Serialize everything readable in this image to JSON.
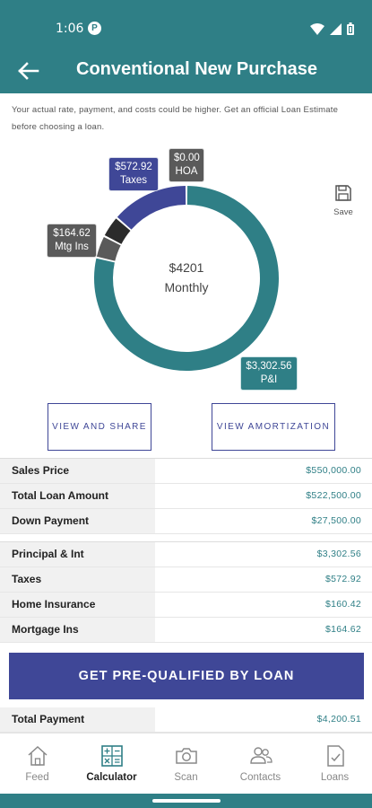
{
  "status_bar": {
    "time": "1:06",
    "badge": "P"
  },
  "app_bar": {
    "title": "Conventional New Purchase"
  },
  "disclaimer": "Your actual rate, payment, and costs could be higher. Get an official Loan Estimate before choosing a loan.",
  "chart_data": {
    "type": "pie",
    "center": {
      "value": "$4201",
      "label": "Monthly"
    },
    "slices": [
      {
        "name": "P&I",
        "label": "$3,302.56",
        "value": 3302.56,
        "color": "#2f7f86"
      },
      {
        "name": "Mtg Ins",
        "label": "$164.62",
        "value": 164.62,
        "color": "#5a5a5a"
      },
      {
        "name": "Home Insurance",
        "label": "",
        "value": 160.42,
        "color": "#2b2b2b"
      },
      {
        "name": "Taxes",
        "label": "$572.92",
        "value": 572.92,
        "color": "#3f4797"
      },
      {
        "name": "HOA",
        "label": "$0.00",
        "value": 0,
        "color": "#5a5a5a"
      }
    ]
  },
  "tags": {
    "taxes": {
      "amount": "$572.92",
      "name": "Taxes"
    },
    "hoa": {
      "amount": "$0.00",
      "name": "HOA"
    },
    "mtg": {
      "amount": "$164.62",
      "name": "Mtg Ins"
    },
    "pi": {
      "amount": "$3,302.56",
      "name": "P&I"
    }
  },
  "save_label": "Save",
  "buttons": {
    "share": "VIEW AND SHARE",
    "amortization": "VIEW AMORTIZATION",
    "prequalify": "GET PRE-QUALIFIED BY LOAN"
  },
  "loan_table": [
    {
      "label": "Sales Price",
      "value": "$550,000.00"
    },
    {
      "label": "Total Loan Amount",
      "value": "$522,500.00"
    },
    {
      "label": "Down Payment",
      "value": "$27,500.00"
    }
  ],
  "payment_table": [
    {
      "label": "Principal & Int",
      "value": "$3,302.56"
    },
    {
      "label": "Taxes",
      "value": "$572.92"
    },
    {
      "label": "Home Insurance",
      "value": "$160.42"
    },
    {
      "label": "Mortgage Ins",
      "value": "$164.62"
    }
  ],
  "total_row": {
    "label": "Total Payment",
    "value": "$4,200.51"
  },
  "nav": [
    {
      "label": "Feed",
      "icon": "home-icon",
      "active": false
    },
    {
      "label": "Calculator",
      "icon": "calculator-icon",
      "active": true
    },
    {
      "label": "Scan",
      "icon": "camera-icon",
      "active": false
    },
    {
      "label": "Contacts",
      "icon": "contacts-icon",
      "active": false
    },
    {
      "label": "Loans",
      "icon": "document-check-icon",
      "active": false
    }
  ]
}
